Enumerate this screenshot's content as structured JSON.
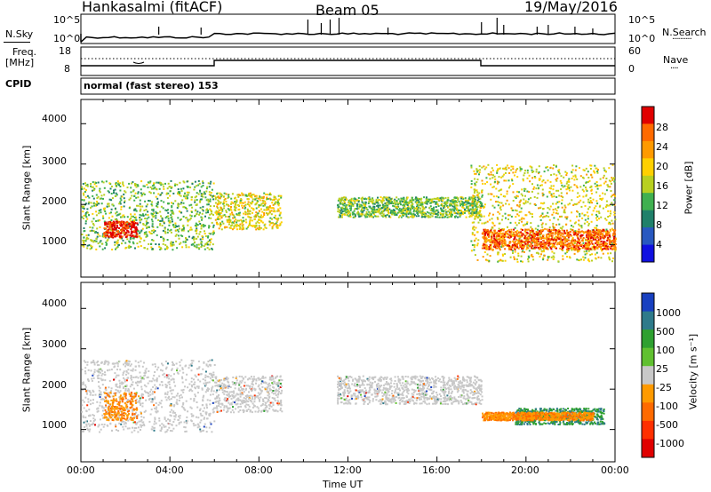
{
  "header": {
    "station": "Hankasalmi (fitACF)",
    "beam": "Beam 05",
    "date": "19/May/2016"
  },
  "top_panels": {
    "nsky_label": "N.Sky",
    "nsearch_label": "N.Search",
    "freq_label_1": "Freq.",
    "freq_label_2": "[MHz]",
    "nave_label": "Nave",
    "cpid_label": "CPID",
    "mode_text": "normal (fast stereo) 153",
    "nsky_ticks": [
      "10^5",
      "10^0"
    ],
    "nsearch_ticks": [
      "10^5",
      "10^0"
    ],
    "freq_ticks": [
      "18",
      "8"
    ],
    "nave_ticks": [
      "60",
      "0"
    ],
    "nave_line_legend": "····",
    "nsearch_line_legend": "··········"
  },
  "chart_data": [
    {
      "type": "heatmap",
      "title": "",
      "ylabel": "Slant Range [km]",
      "xlabel": "",
      "colorbar_label": "Power [dB]",
      "colorbar_ticks": [
        "28",
        "24",
        "20",
        "16",
        "12",
        "8",
        "4"
      ],
      "colorbar_colors": [
        "#e00000",
        "#ff6a00",
        "#ff9a00",
        "#ffd000",
        "#b8d020",
        "#40b050",
        "#20806a",
        "#2858c0",
        "#1010e0"
      ],
      "yticks": [
        "4000",
        "3000",
        "2000",
        "1000"
      ],
      "ylim": [
        200,
        4600
      ],
      "grid": false,
      "scatter_regions": [
        {
          "x_hours": [
            0.0,
            6.0
          ],
          "range_km": [
            900,
            2600
          ],
          "dominant_db": 12
        },
        {
          "x_hours": [
            1.0,
            2.5
          ],
          "range_km": [
            1200,
            1600
          ],
          "dominant_db": 28
        },
        {
          "x_hours": [
            6.0,
            9.0
          ],
          "range_km": [
            1400,
            2300
          ],
          "dominant_db": 16
        },
        {
          "x_hours": [
            11.5,
            18.0
          ],
          "range_km": [
            1700,
            2200
          ],
          "dominant_db": 12
        },
        {
          "x_hours": [
            17.5,
            24.0
          ],
          "range_km": [
            600,
            3000
          ],
          "dominant_db": 16
        },
        {
          "x_hours": [
            18.0,
            24.0
          ],
          "range_km": [
            900,
            1400
          ],
          "dominant_db": 24
        }
      ]
    },
    {
      "type": "heatmap",
      "title": "",
      "ylabel": "Slant Range [km]",
      "xlabel": "Time UT",
      "colorbar_label": "Velocity [m s⁻¹]",
      "colorbar_ticks": [
        "1000",
        "500",
        "100",
        "25",
        "-25",
        "-100",
        "-500",
        "-1000"
      ],
      "colorbar_colors": [
        "#1840c0",
        "#2e7a8a",
        "#2ea030",
        "#60c030",
        "#c8c8c8",
        "#ff9a00",
        "#ff6a00",
        "#ff3000",
        "#e00000"
      ],
      "xticks": [
        "00:00",
        "04:00",
        "08:00",
        "12:00",
        "16:00",
        "20:00",
        "00:00"
      ],
      "yticks": [
        "4000",
        "3000",
        "2000",
        "1000"
      ],
      "ylim": [
        200,
        4600
      ],
      "grid": false,
      "scatter_regions": [
        {
          "x_hours": [
            0.0,
            6.0
          ],
          "range_km": [
            900,
            2700
          ],
          "dominant_velocity": 0
        },
        {
          "x_hours": [
            1.0,
            2.5
          ],
          "range_km": [
            1200,
            1900
          ],
          "dominant_velocity": -300
        },
        {
          "x_hours": [
            6.0,
            9.0
          ],
          "range_km": [
            1400,
            2300
          ],
          "dominant_velocity": 0
        },
        {
          "x_hours": [
            11.5,
            18.0
          ],
          "range_km": [
            1600,
            2300
          ],
          "dominant_velocity": 0
        },
        {
          "x_hours": [
            19.5,
            23.5
          ],
          "range_km": [
            1100,
            1500
          ],
          "dominant_velocity": 200
        },
        {
          "x_hours": [
            18.0,
            23.0
          ],
          "range_km": [
            1200,
            1400
          ],
          "dominant_velocity": -300
        }
      ]
    }
  ]
}
